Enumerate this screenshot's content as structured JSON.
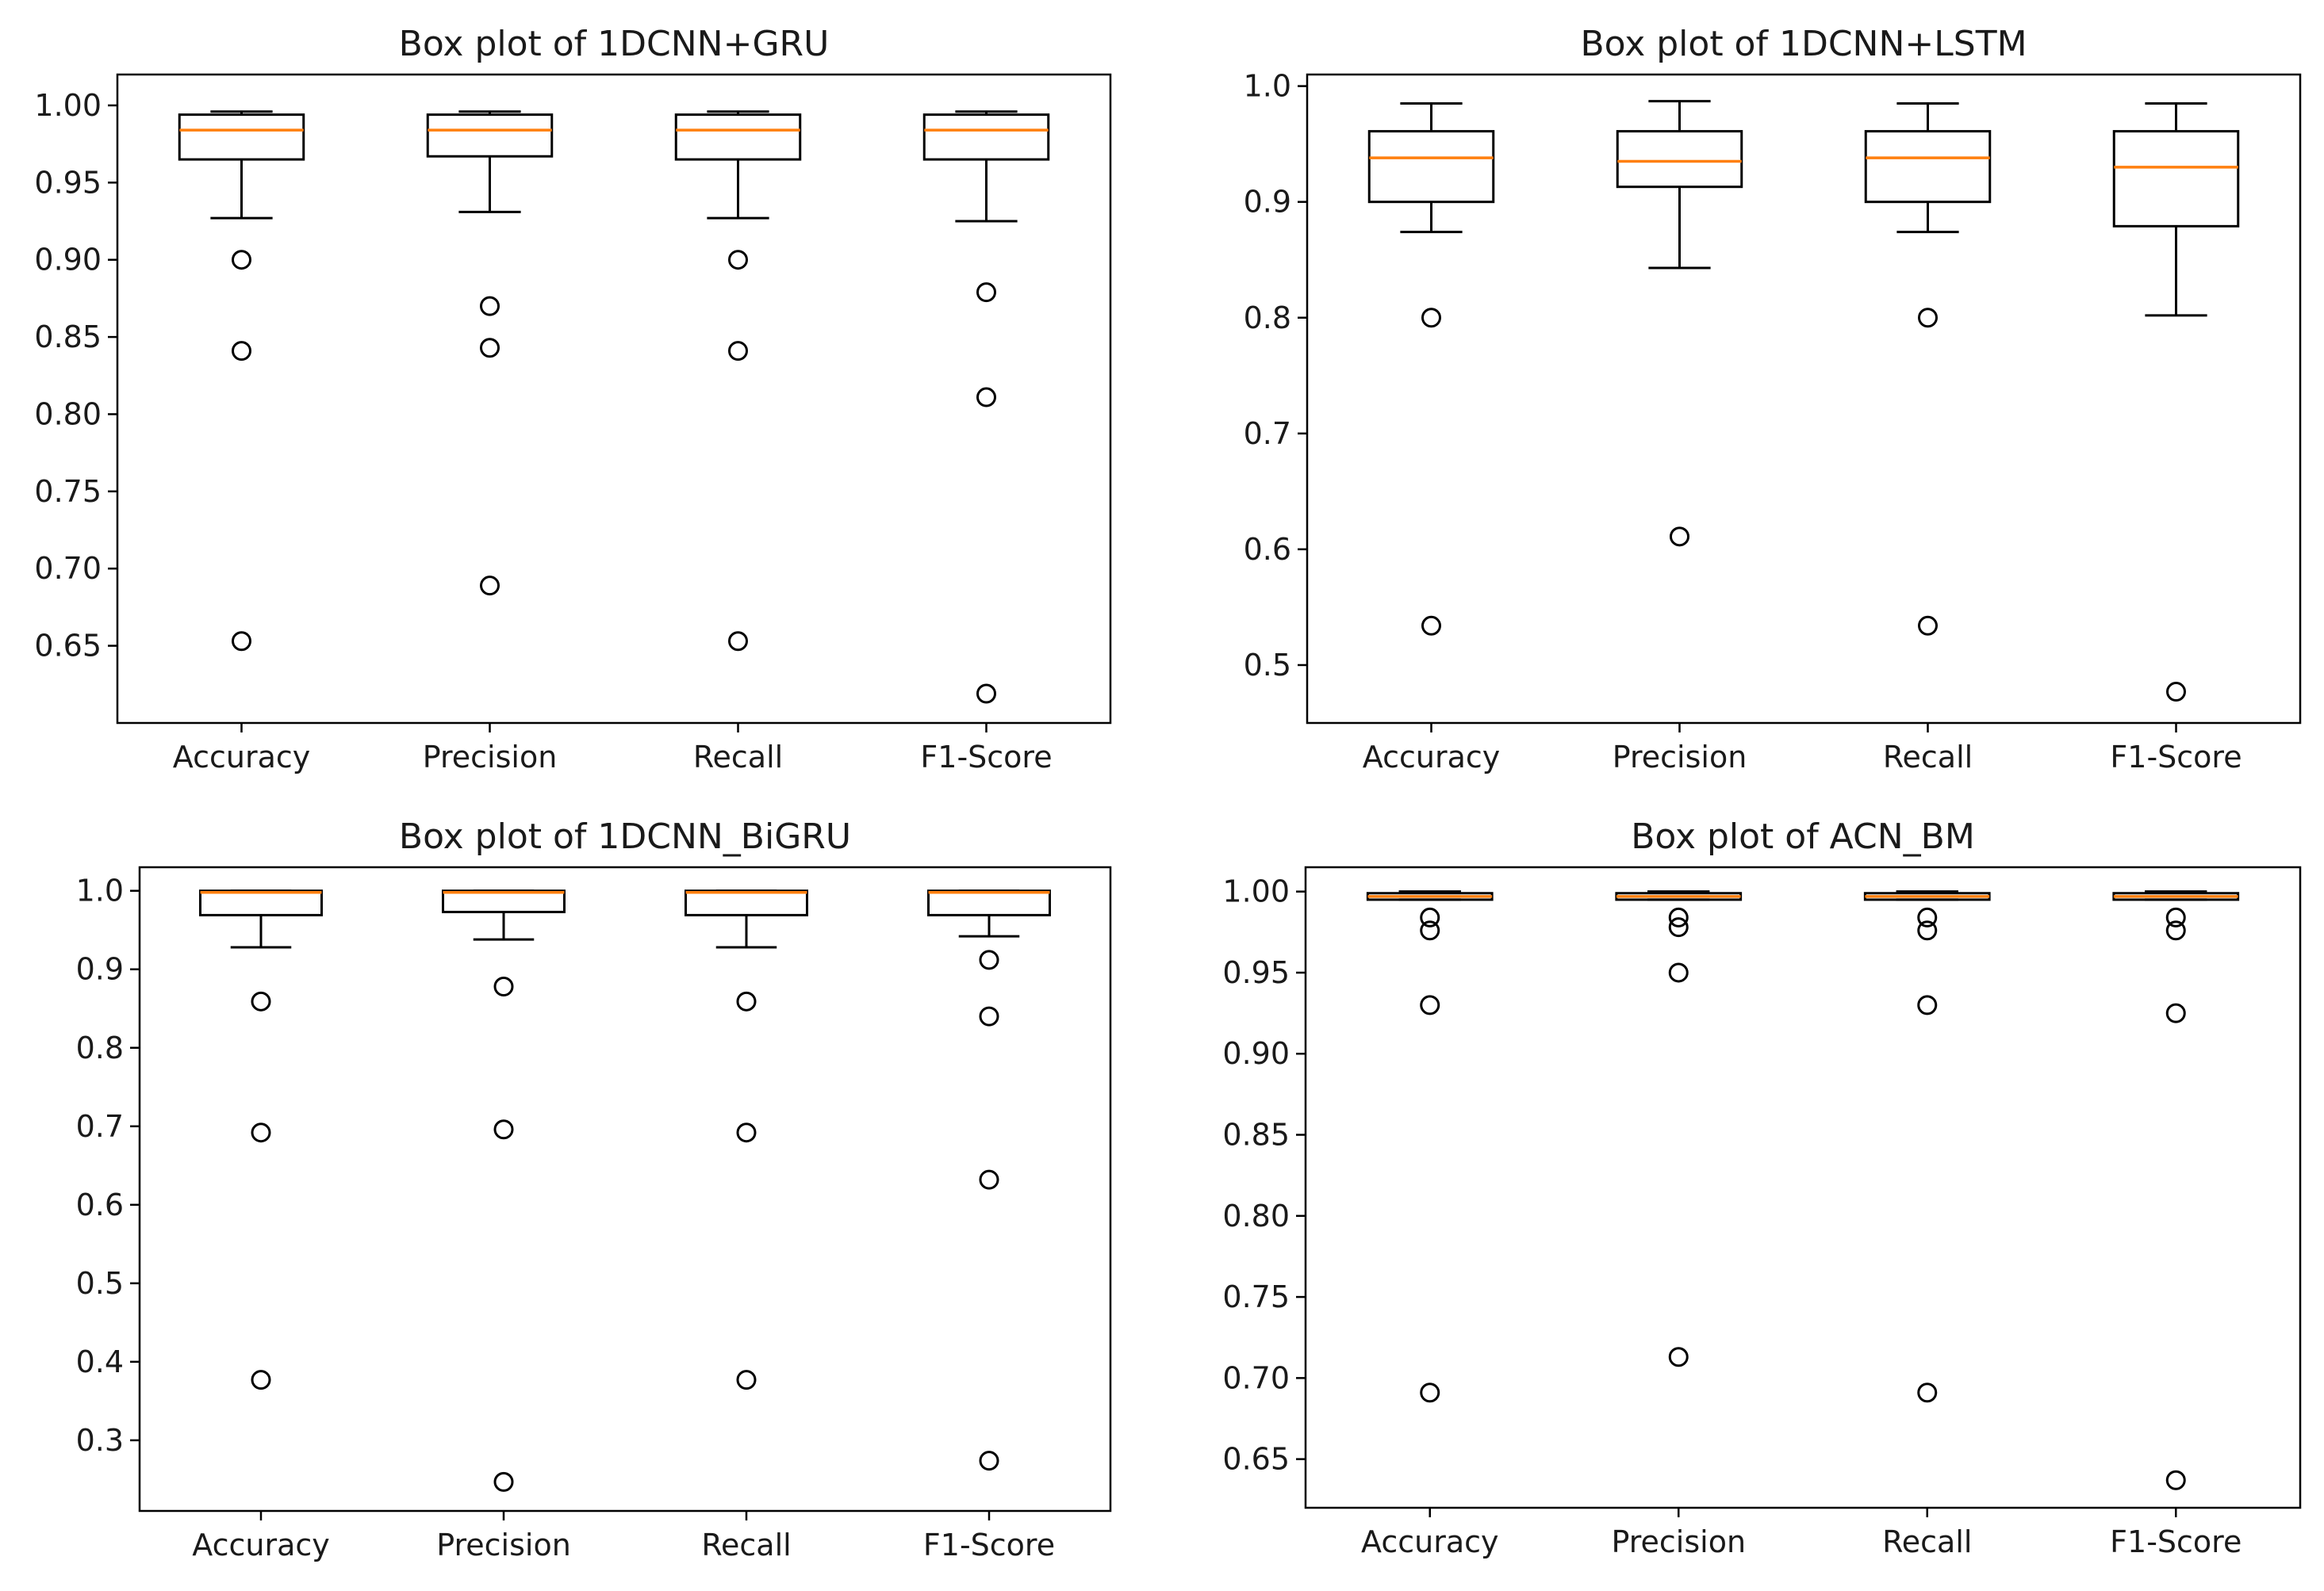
{
  "chart_data": [
    {
      "type": "box",
      "title": "Box plot of 1DCNN+GRU",
      "categories": [
        "Accuracy",
        "Precision",
        "Recall",
        "F1-Score"
      ],
      "ylim": [
        0.6,
        1.02
      ],
      "yticks": [
        0.65,
        0.7,
        0.75,
        0.8,
        0.85,
        0.9,
        0.95,
        1.0
      ],
      "ytick_labels": [
        "0.65",
        "0.70",
        "0.75",
        "0.80",
        "0.85",
        "0.90",
        "0.95",
        "1.00"
      ],
      "boxes": [
        {
          "whislo": 0.927,
          "q1": 0.965,
          "med": 0.984,
          "q3": 0.994,
          "whishi": 0.996,
          "fliers": [
            0.9,
            0.841,
            0.653
          ]
        },
        {
          "whislo": 0.931,
          "q1": 0.967,
          "med": 0.984,
          "q3": 0.994,
          "whishi": 0.996,
          "fliers": [
            0.87,
            0.843,
            0.689
          ]
        },
        {
          "whislo": 0.927,
          "q1": 0.965,
          "med": 0.984,
          "q3": 0.994,
          "whishi": 0.996,
          "fliers": [
            0.9,
            0.841,
            0.653
          ]
        },
        {
          "whislo": 0.925,
          "q1": 0.965,
          "med": 0.984,
          "q3": 0.994,
          "whishi": 0.996,
          "fliers": [
            0.879,
            0.811,
            0.619
          ]
        }
      ]
    },
    {
      "type": "box",
      "title": "Box plot of 1DCNN+LSTM",
      "categories": [
        "Accuracy",
        "Precision",
        "Recall",
        "F1-Score"
      ],
      "ylim": [
        0.45,
        1.01
      ],
      "yticks": [
        0.5,
        0.6,
        0.7,
        0.8,
        0.9,
        1.0
      ],
      "ytick_labels": [
        "0.5",
        "0.6",
        "0.7",
        "0.8",
        "0.9",
        "1.0"
      ],
      "boxes": [
        {
          "whislo": 0.874,
          "q1": 0.9,
          "med": 0.938,
          "q3": 0.961,
          "whishi": 0.985,
          "fliers": [
            0.8,
            0.534
          ]
        },
        {
          "whislo": 0.843,
          "q1": 0.913,
          "med": 0.935,
          "q3": 0.961,
          "whishi": 0.987,
          "fliers": [
            0.611
          ]
        },
        {
          "whislo": 0.874,
          "q1": 0.9,
          "med": 0.938,
          "q3": 0.961,
          "whishi": 0.985,
          "fliers": [
            0.8,
            0.534
          ]
        },
        {
          "whislo": 0.802,
          "q1": 0.879,
          "med": 0.93,
          "q3": 0.961,
          "whishi": 0.985,
          "fliers": [
            0.477
          ]
        }
      ]
    },
    {
      "type": "box",
      "title": "Box plot of 1DCNN_BiGRU",
      "categories": [
        "Accuracy",
        "Precision",
        "Recall",
        "F1-Score"
      ],
      "ylim": [
        0.21,
        1.03
      ],
      "yticks": [
        0.3,
        0.4,
        0.5,
        0.6,
        0.7,
        0.8,
        0.9,
        1.0
      ],
      "ytick_labels": [
        "0.3",
        "0.4",
        "0.5",
        "0.6",
        "0.7",
        "0.8",
        "0.9",
        "1.0"
      ],
      "boxes": [
        {
          "whislo": 0.928,
          "q1": 0.969,
          "med": 0.998,
          "q3": 1.0,
          "whishi": 1.0,
          "fliers": [
            0.859,
            0.692,
            0.377
          ]
        },
        {
          "whislo": 0.938,
          "q1": 0.973,
          "med": 0.998,
          "q3": 1.0,
          "whishi": 1.0,
          "fliers": [
            0.878,
            0.696,
            0.247
          ]
        },
        {
          "whislo": 0.928,
          "q1": 0.969,
          "med": 0.998,
          "q3": 1.0,
          "whishi": 1.0,
          "fliers": [
            0.859,
            0.692,
            0.377
          ]
        },
        {
          "whislo": 0.942,
          "q1": 0.969,
          "med": 0.998,
          "q3": 1.0,
          "whishi": 1.0,
          "fliers": [
            0.912,
            0.84,
            0.632,
            0.274
          ]
        }
      ]
    },
    {
      "type": "box",
      "title": "Box plot of ACN_BM",
      "categories": [
        "Accuracy",
        "Precision",
        "Recall",
        "F1-Score"
      ],
      "ylim": [
        0.62,
        1.015
      ],
      "yticks": [
        0.65,
        0.7,
        0.75,
        0.8,
        0.85,
        0.9,
        0.95,
        1.0
      ],
      "ytick_labels": [
        "0.65",
        "0.70",
        "0.75",
        "0.80",
        "0.85",
        "0.90",
        "0.95",
        "1.00"
      ],
      "boxes": [
        {
          "whislo": 0.995,
          "q1": 0.995,
          "med": 0.997,
          "q3": 0.999,
          "whishi": 1.0,
          "fliers": [
            0.984,
            0.976,
            0.93,
            0.691
          ]
        },
        {
          "whislo": 0.995,
          "q1": 0.995,
          "med": 0.997,
          "q3": 0.999,
          "whishi": 1.0,
          "fliers": [
            0.984,
            0.978,
            0.95,
            0.713
          ]
        },
        {
          "whislo": 0.995,
          "q1": 0.995,
          "med": 0.997,
          "q3": 0.999,
          "whishi": 1.0,
          "fliers": [
            0.984,
            0.976,
            0.93,
            0.691
          ]
        },
        {
          "whislo": 0.995,
          "q1": 0.995,
          "med": 0.997,
          "q3": 0.999,
          "whishi": 1.0,
          "fliers": [
            0.984,
            0.976,
            0.925,
            0.637
          ]
        }
      ]
    }
  ],
  "colors": {
    "median": "#ff7f0e",
    "box": "#000000",
    "background": "#ffffff"
  }
}
